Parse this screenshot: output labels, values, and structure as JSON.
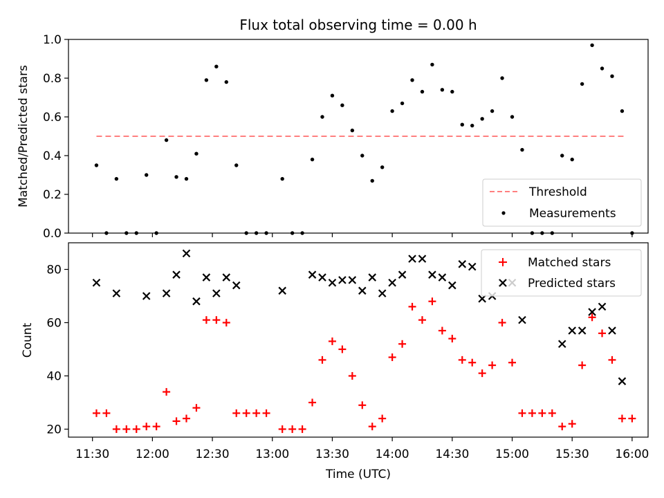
{
  "chart_data": [
    {
      "type": "scatter",
      "title": "Flux total observing time = 0.00 h",
      "xlabel": "",
      "ylabel": "Matched/Predicted stars",
      "xlim": [
        "11:18",
        "16:08"
      ],
      "ylim": [
        0,
        1.0
      ],
      "yticks": [
        0.0,
        0.2,
        0.4,
        0.6,
        0.8,
        1.0
      ],
      "ytick_labels": [
        "0.0",
        "0.2",
        "0.4",
        "0.6",
        "0.8",
        "1.0"
      ],
      "legend": {
        "placement": "lower-right",
        "entries": [
          "Threshold",
          "Measurements"
        ]
      },
      "threshold": {
        "name": "Threshold",
        "value": 0.5,
        "x_range": [
          "11:32",
          "15:57"
        ],
        "color": "#ff7f7f",
        "style": "dashed"
      },
      "series": [
        {
          "name": "Measurements",
          "marker": "dot",
          "color": "#000000",
          "points": [
            {
              "x": "11:32",
              "y": 0.35
            },
            {
              "x": "11:37",
              "y": 0.0
            },
            {
              "x": "11:42",
              "y": 0.28
            },
            {
              "x": "11:47",
              "y": 0.0
            },
            {
              "x": "11:52",
              "y": 0.0
            },
            {
              "x": "11:57",
              "y": 0.3
            },
            {
              "x": "12:02",
              "y": 0.0
            },
            {
              "x": "12:07",
              "y": 0.48
            },
            {
              "x": "12:12",
              "y": 0.29
            },
            {
              "x": "12:17",
              "y": 0.28
            },
            {
              "x": "12:22",
              "y": 0.41
            },
            {
              "x": "12:27",
              "y": 0.79
            },
            {
              "x": "12:32",
              "y": 0.86
            },
            {
              "x": "12:37",
              "y": 0.78
            },
            {
              "x": "12:42",
              "y": 0.35
            },
            {
              "x": "12:47",
              "y": 0.0
            },
            {
              "x": "12:52",
              "y": 0.0
            },
            {
              "x": "12:57",
              "y": 0.0
            },
            {
              "x": "13:05",
              "y": 0.28
            },
            {
              "x": "13:10",
              "y": 0.0
            },
            {
              "x": "13:15",
              "y": 0.0
            },
            {
              "x": "13:20",
              "y": 0.38
            },
            {
              "x": "13:25",
              "y": 0.6
            },
            {
              "x": "13:30",
              "y": 0.71
            },
            {
              "x": "13:35",
              "y": 0.66
            },
            {
              "x": "13:40",
              "y": 0.53
            },
            {
              "x": "13:45",
              "y": 0.4
            },
            {
              "x": "13:50",
              "y": 0.27
            },
            {
              "x": "13:55",
              "y": 0.34
            },
            {
              "x": "14:00",
              "y": 0.63
            },
            {
              "x": "14:05",
              "y": 0.67
            },
            {
              "x": "14:10",
              "y": 0.79
            },
            {
              "x": "14:15",
              "y": 0.73
            },
            {
              "x": "14:20",
              "y": 0.87
            },
            {
              "x": "14:25",
              "y": 0.74
            },
            {
              "x": "14:30",
              "y": 0.73
            },
            {
              "x": "14:35",
              "y": 0.56
            },
            {
              "x": "14:40",
              "y": 0.555
            },
            {
              "x": "14:45",
              "y": 0.59
            },
            {
              "x": "14:50",
              "y": 0.63
            },
            {
              "x": "14:55",
              "y": 0.8
            },
            {
              "x": "15:00",
              "y": 0.6
            },
            {
              "x": "15:05",
              "y": 0.43
            },
            {
              "x": "15:10",
              "y": 0.0
            },
            {
              "x": "15:15",
              "y": 0.0
            },
            {
              "x": "15:20",
              "y": 0.0
            },
            {
              "x": "15:25",
              "y": 0.4
            },
            {
              "x": "15:30",
              "y": 0.38
            },
            {
              "x": "15:35",
              "y": 0.77
            },
            {
              "x": "15:40",
              "y": 0.97
            },
            {
              "x": "15:45",
              "y": 0.85
            },
            {
              "x": "15:50",
              "y": 0.81
            },
            {
              "x": "15:55",
              "y": 0.63
            },
            {
              "x": "16:00",
              "y": 0.0
            }
          ]
        }
      ]
    },
    {
      "type": "scatter",
      "title": "",
      "xlabel": "Time (UTC)",
      "ylabel": "Count",
      "xlim": [
        "11:18",
        "16:08"
      ],
      "ylim": [
        17,
        90
      ],
      "yticks": [
        20,
        40,
        60,
        80
      ],
      "ytick_labels": [
        "20",
        "40",
        "60",
        "80"
      ],
      "xticks": [
        "11:30",
        "12:00",
        "12:30",
        "13:00",
        "13:30",
        "14:00",
        "14:30",
        "15:00",
        "15:30",
        "16:00"
      ],
      "legend": {
        "placement": "top-right",
        "entries": [
          "Matched stars",
          "Predicted stars"
        ]
      },
      "series": [
        {
          "name": "Matched stars",
          "marker": "plus",
          "color": "#ff0000",
          "points": [
            {
              "x": "11:32",
              "y": 26
            },
            {
              "x": "11:37",
              "y": 26
            },
            {
              "x": "11:42",
              "y": 20
            },
            {
              "x": "11:47",
              "y": 20
            },
            {
              "x": "11:52",
              "y": 20
            },
            {
              "x": "11:57",
              "y": 21
            },
            {
              "x": "12:02",
              "y": 21
            },
            {
              "x": "12:07",
              "y": 34
            },
            {
              "x": "12:12",
              "y": 23
            },
            {
              "x": "12:17",
              "y": 24
            },
            {
              "x": "12:22",
              "y": 28
            },
            {
              "x": "12:27",
              "y": 61
            },
            {
              "x": "12:32",
              "y": 61
            },
            {
              "x": "12:37",
              "y": 60
            },
            {
              "x": "12:42",
              "y": 26
            },
            {
              "x": "12:47",
              "y": 26
            },
            {
              "x": "12:52",
              "y": 26
            },
            {
              "x": "12:57",
              "y": 26
            },
            {
              "x": "13:05",
              "y": 20
            },
            {
              "x": "13:10",
              "y": 20
            },
            {
              "x": "13:15",
              "y": 20
            },
            {
              "x": "13:20",
              "y": 30
            },
            {
              "x": "13:25",
              "y": 46
            },
            {
              "x": "13:30",
              "y": 53
            },
            {
              "x": "13:35",
              "y": 50
            },
            {
              "x": "13:40",
              "y": 40
            },
            {
              "x": "13:45",
              "y": 29
            },
            {
              "x": "13:50",
              "y": 21
            },
            {
              "x": "13:55",
              "y": 24
            },
            {
              "x": "14:00",
              "y": 47
            },
            {
              "x": "14:05",
              "y": 52
            },
            {
              "x": "14:10",
              "y": 66
            },
            {
              "x": "14:15",
              "y": 61
            },
            {
              "x": "14:20",
              "y": 68
            },
            {
              "x": "14:25",
              "y": 57
            },
            {
              "x": "14:30",
              "y": 54
            },
            {
              "x": "14:35",
              "y": 46
            },
            {
              "x": "14:40",
              "y": 45
            },
            {
              "x": "14:45",
              "y": 41
            },
            {
              "x": "14:50",
              "y": 44
            },
            {
              "x": "14:55",
              "y": 60
            },
            {
              "x": "15:00",
              "y": 45
            },
            {
              "x": "15:05",
              "y": 26
            },
            {
              "x": "15:10",
              "y": 26
            },
            {
              "x": "15:15",
              "y": 26
            },
            {
              "x": "15:20",
              "y": 26
            },
            {
              "x": "15:25",
              "y": 21
            },
            {
              "x": "15:30",
              "y": 22
            },
            {
              "x": "15:35",
              "y": 44
            },
            {
              "x": "15:40",
              "y": 62
            },
            {
              "x": "15:45",
              "y": 56
            },
            {
              "x": "15:50",
              "y": 46
            },
            {
              "x": "15:55",
              "y": 24
            },
            {
              "x": "16:00",
              "y": 24
            }
          ]
        },
        {
          "name": "Predicted stars",
          "marker": "x",
          "color": "#000000",
          "points": [
            {
              "x": "11:32",
              "y": 75
            },
            {
              "x": "11:42",
              "y": 71
            },
            {
              "x": "11:57",
              "y": 70
            },
            {
              "x": "12:07",
              "y": 71
            },
            {
              "x": "12:12",
              "y": 78
            },
            {
              "x": "12:17",
              "y": 86
            },
            {
              "x": "12:22",
              "y": 68
            },
            {
              "x": "12:27",
              "y": 77
            },
            {
              "x": "12:32",
              "y": 71
            },
            {
              "x": "12:37",
              "y": 77
            },
            {
              "x": "12:42",
              "y": 74
            },
            {
              "x": "13:05",
              "y": 72
            },
            {
              "x": "13:20",
              "y": 78
            },
            {
              "x": "13:25",
              "y": 77
            },
            {
              "x": "13:30",
              "y": 75
            },
            {
              "x": "13:35",
              "y": 76
            },
            {
              "x": "13:40",
              "y": 76
            },
            {
              "x": "13:45",
              "y": 72
            },
            {
              "x": "13:50",
              "y": 77
            },
            {
              "x": "13:55",
              "y": 71
            },
            {
              "x": "14:00",
              "y": 75
            },
            {
              "x": "14:05",
              "y": 78
            },
            {
              "x": "14:10",
              "y": 84
            },
            {
              "x": "14:15",
              "y": 84
            },
            {
              "x": "14:20",
              "y": 78
            },
            {
              "x": "14:25",
              "y": 77
            },
            {
              "x": "14:30",
              "y": 74
            },
            {
              "x": "14:35",
              "y": 82
            },
            {
              "x": "14:40",
              "y": 81
            },
            {
              "x": "14:45",
              "y": 69
            },
            {
              "x": "14:50",
              "y": 70
            },
            {
              "x": "14:55",
              "y": 75
            },
            {
              "x": "15:00",
              "y": 75
            },
            {
              "x": "15:05",
              "y": 61
            },
            {
              "x": "15:25",
              "y": 52
            },
            {
              "x": "15:30",
              "y": 57
            },
            {
              "x": "15:35",
              "y": 57
            },
            {
              "x": "15:40",
              "y": 64
            },
            {
              "x": "15:45",
              "y": 66
            },
            {
              "x": "15:50",
              "y": 57
            },
            {
              "x": "15:55",
              "y": 38
            }
          ]
        }
      ]
    }
  ]
}
